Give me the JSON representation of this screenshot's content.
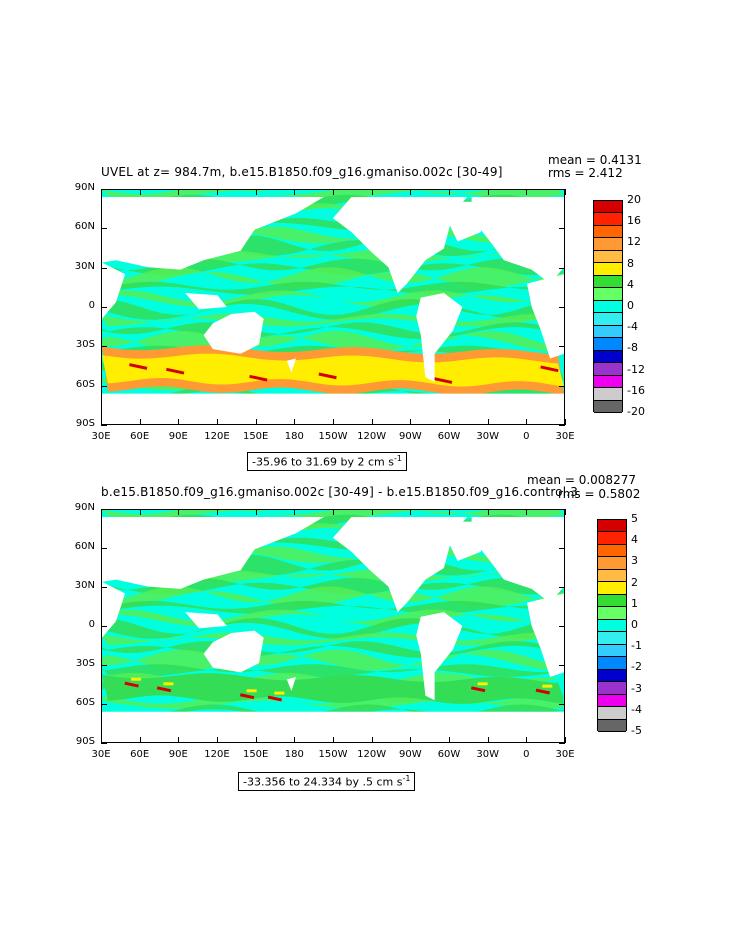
{
  "panels": [
    {
      "title": "UVEL at z= 984.7m, b.e15.B1850.f09_g16.gmaniso.002c [30-49]",
      "mean_text": "mean = 0.4131",
      "rms_text": "rms = 2.412",
      "range_text": "-35.96 to 31.69 by 2 cm s",
      "range_sup": "-1",
      "lat_labels": [
        "90N",
        "60N",
        "30N",
        "0",
        "30S",
        "60S",
        "90S"
      ],
      "lon_labels": [
        "30E",
        "60E",
        "90E",
        "120E",
        "150E",
        "180",
        "150W",
        "120W",
        "90W",
        "60W",
        "30W",
        "0",
        "30E"
      ],
      "colorbar_labels": [
        "20",
        "16",
        "12",
        "8",
        "4",
        "0",
        "-4",
        "-8",
        "-12",
        "-16",
        "-20"
      ],
      "colorbar_colors": [
        "#d40000",
        "#ff2200",
        "#ff6600",
        "#ff9933",
        "#ffbb44",
        "#ffee00",
        "#33dd33",
        "#66ff66",
        "#00ffe0",
        "#33eeee",
        "#33ccff",
        "#0088ff",
        "#0000cc",
        "#9933cc",
        "#ee00ee",
        "#cccccc",
        "#666666"
      ]
    },
    {
      "title": "b.e15.B1850.f09_g16.gmaniso.002c [30-49] - b.e15.B1850.f09_g16.control.3",
      "mean_text": "mean = 0.008277",
      "rms_text": "rms = 0.5802",
      "range_text": "-33.356 to 24.334 by .5 cm s",
      "range_sup": "-1",
      "lat_labels": [
        "90N",
        "60N",
        "30N",
        "0",
        "30S",
        "60S",
        "90S"
      ],
      "lon_labels": [
        "30E",
        "60E",
        "90E",
        "120E",
        "150E",
        "180",
        "150W",
        "120W",
        "90W",
        "60W",
        "30W",
        "0",
        "30E"
      ],
      "colorbar_labels": [
        "5",
        "4",
        "3",
        "2",
        "1",
        "0",
        "-1",
        "-2",
        "-3",
        "-4",
        "-5"
      ],
      "colorbar_colors": [
        "#d40000",
        "#ff2200",
        "#ff6600",
        "#ff9933",
        "#ffbb44",
        "#ffee00",
        "#33dd33",
        "#66ff66",
        "#00ffe0",
        "#33eeee",
        "#33ccff",
        "#0088ff",
        "#0000cc",
        "#9933cc",
        "#ee00ee",
        "#cccccc",
        "#666666"
      ]
    }
  ],
  "colors": {
    "ocean_base": "#00ffe0",
    "ocean_band": "#33dd55",
    "ocean_band2": "#55ee55",
    "acc_yellow": "#ffee00",
    "acc_orange": "#ff9933",
    "acc_red": "#d40000",
    "land": "#ffffff"
  }
}
